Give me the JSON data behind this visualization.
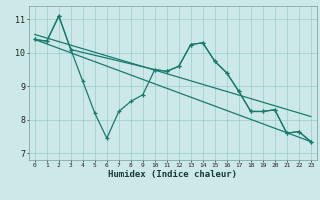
{
  "xlabel": "Humidex (Indice chaleur)",
  "background_color": "#cce8e8",
  "grid_color": "#99cccc",
  "line_color": "#1a7a6e",
  "xlim": [
    -0.5,
    23.5
  ],
  "ylim": [
    6.8,
    11.4
  ],
  "xticks": [
    0,
    1,
    2,
    3,
    4,
    5,
    6,
    7,
    8,
    9,
    10,
    11,
    12,
    13,
    14,
    15,
    16,
    17,
    18,
    19,
    20,
    21,
    22,
    23
  ],
  "yticks": [
    7,
    8,
    9,
    10,
    11
  ],
  "line1_x": [
    0,
    1,
    2,
    3,
    4,
    5,
    6,
    7,
    8,
    9,
    10,
    11,
    12,
    13,
    14,
    15,
    16,
    17,
    18,
    19,
    20,
    21,
    22,
    23
  ],
  "line1_y": [
    10.4,
    10.35,
    11.1,
    10.1,
    9.15,
    8.2,
    7.45,
    8.25,
    8.55,
    8.75,
    9.5,
    9.45,
    9.6,
    10.25,
    10.3,
    9.75,
    9.4,
    8.85,
    8.25,
    8.25,
    8.3,
    7.6,
    7.65,
    7.35
  ],
  "line2_x": [
    0,
    1,
    2,
    3,
    10,
    11,
    12,
    13,
    14,
    15,
    16,
    17,
    18,
    19,
    20,
    21,
    22,
    23
  ],
  "line2_y": [
    10.4,
    10.35,
    11.1,
    10.1,
    9.5,
    9.45,
    9.6,
    10.25,
    10.3,
    9.75,
    9.4,
    8.85,
    8.25,
    8.25,
    8.3,
    7.6,
    7.65,
    7.35
  ],
  "trend1_x": [
    0,
    23
  ],
  "trend1_y": [
    10.55,
    8.1
  ],
  "trend2_x": [
    0,
    23
  ],
  "trend2_y": [
    10.4,
    7.35
  ]
}
